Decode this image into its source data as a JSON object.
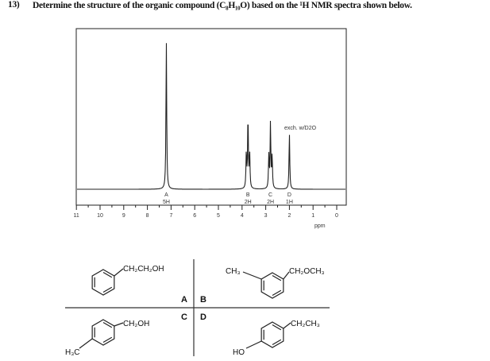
{
  "question": {
    "number": "13)",
    "text": "Determine the structure of the organic compound (C₈H₁₀O) based on the ¹H NMR spectra shown below."
  },
  "chart_data": {
    "type": "line",
    "xlabel": "ppm",
    "xlim": [
      11,
      0
    ],
    "x_ticks": [
      "11",
      "10",
      "9",
      "8",
      "7",
      "6",
      "5",
      "4",
      "3",
      "2",
      "1",
      "0"
    ],
    "annotation": "exch. w/D2O",
    "peaks": [
      {
        "label": "A",
        "integration": "5H",
        "ppm": 7.2,
        "multiplicity": "singlet",
        "relative_height": 1.0
      },
      {
        "label": "B",
        "integration": "2H",
        "ppm": 3.75,
        "multiplicity": "triplet",
        "relative_height": 0.49
      },
      {
        "label": "C",
        "integration": "2H",
        "ppm": 2.8,
        "multiplicity": "triplet",
        "relative_height": 0.44
      },
      {
        "label": "D",
        "integration": "1H",
        "ppm": 2.0,
        "multiplicity": "singlet",
        "relative_height": 0.38
      }
    ]
  },
  "choices": {
    "A": {
      "label": "A",
      "substituent": "CH₂CH₂OH"
    },
    "B": {
      "label": "B",
      "substituent_left": "CH₃",
      "substituent_right": "CH₂OCH₃"
    },
    "C": {
      "label": "C",
      "substituent_top": "CH₂OH",
      "substituent_bottom": "H₃C"
    },
    "D": {
      "label": "D",
      "substituent_top": "CH₂CH₃",
      "substituent_bottom": "HO"
    }
  }
}
